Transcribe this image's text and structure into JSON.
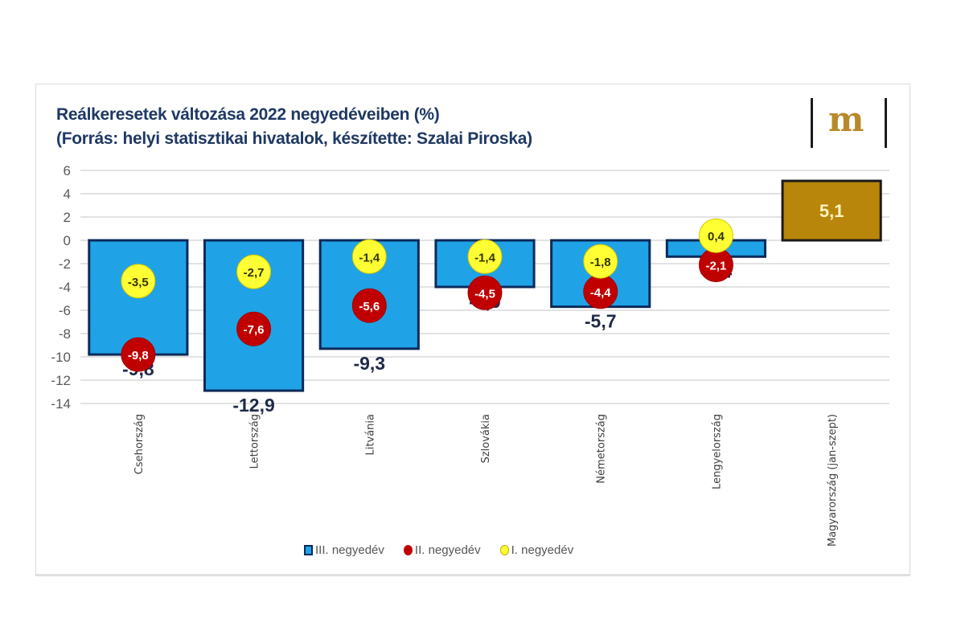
{
  "header": {
    "title_line1": "Reálkeresetek változása 2022 negyedéveiben (%)",
    "title_line2": "(Forrás: helyi statisztikai hivatalok, készítette: Szalai Piroska)",
    "logo_text": "m"
  },
  "colors": {
    "q3_bar": "#1fa3e6",
    "q3_bar_border": "#0a2a5a",
    "hungary_bar": "#b8860b",
    "q2_dot": "#c00000",
    "q1_dot": "#ffff33",
    "title": "#1f3864",
    "logo": "#b8892a"
  },
  "chart_data": {
    "type": "bar",
    "title": "Reálkeresetek változása 2022 negyedéveiben (%)",
    "subtitle": "(Forrás: helyi statisztikai hivatalok, készítette: Szalai Piroska)",
    "xlabel": "",
    "ylabel": "",
    "ylim": [
      -14,
      6
    ],
    "yticks": [
      6,
      4,
      2,
      0,
      -2,
      -4,
      -6,
      -8,
      -10,
      -12,
      -14
    ],
    "grid": true,
    "legend_position": "bottom",
    "categories": [
      "Csehország",
      "Lettország",
      "Litvánia",
      "Szlovákia",
      "Németország",
      "Lengyelország",
      "Magyarország (jan-szept)"
    ],
    "series": [
      {
        "name": "III. negyedév",
        "kind": "bar",
        "values": [
          -9.8,
          -12.9,
          -9.3,
          -4.0,
          -5.7,
          -1.4,
          5.1
        ],
        "labels": [
          "-9,8",
          "-12,9",
          "-9,3",
          "-4,0",
          "-5,7",
          "-1,4",
          "5,1"
        ]
      },
      {
        "name": "II. negyedév",
        "kind": "marker",
        "values": [
          -9.8,
          -7.6,
          -5.6,
          -4.5,
          -4.4,
          -2.1,
          null
        ],
        "labels": [
          "-9,8",
          "-7,6",
          "-5,6",
          "-4,5",
          "-4,4",
          "-2,1",
          null
        ]
      },
      {
        "name": "I. negyedév",
        "kind": "marker",
        "values": [
          -3.5,
          -2.7,
          -1.4,
          -1.4,
          -1.8,
          0.4,
          null
        ],
        "labels": [
          "-3,5",
          "-2,7",
          "-1,4",
          "-1,4",
          "-1,8",
          "0,4",
          null
        ]
      }
    ]
  },
  "legend": [
    {
      "label": "III. negyedév",
      "shape": "bar"
    },
    {
      "label": "II. negyedév",
      "shape": "dot-red"
    },
    {
      "label": "I. negyedév",
      "shape": "dot-yellow"
    }
  ]
}
